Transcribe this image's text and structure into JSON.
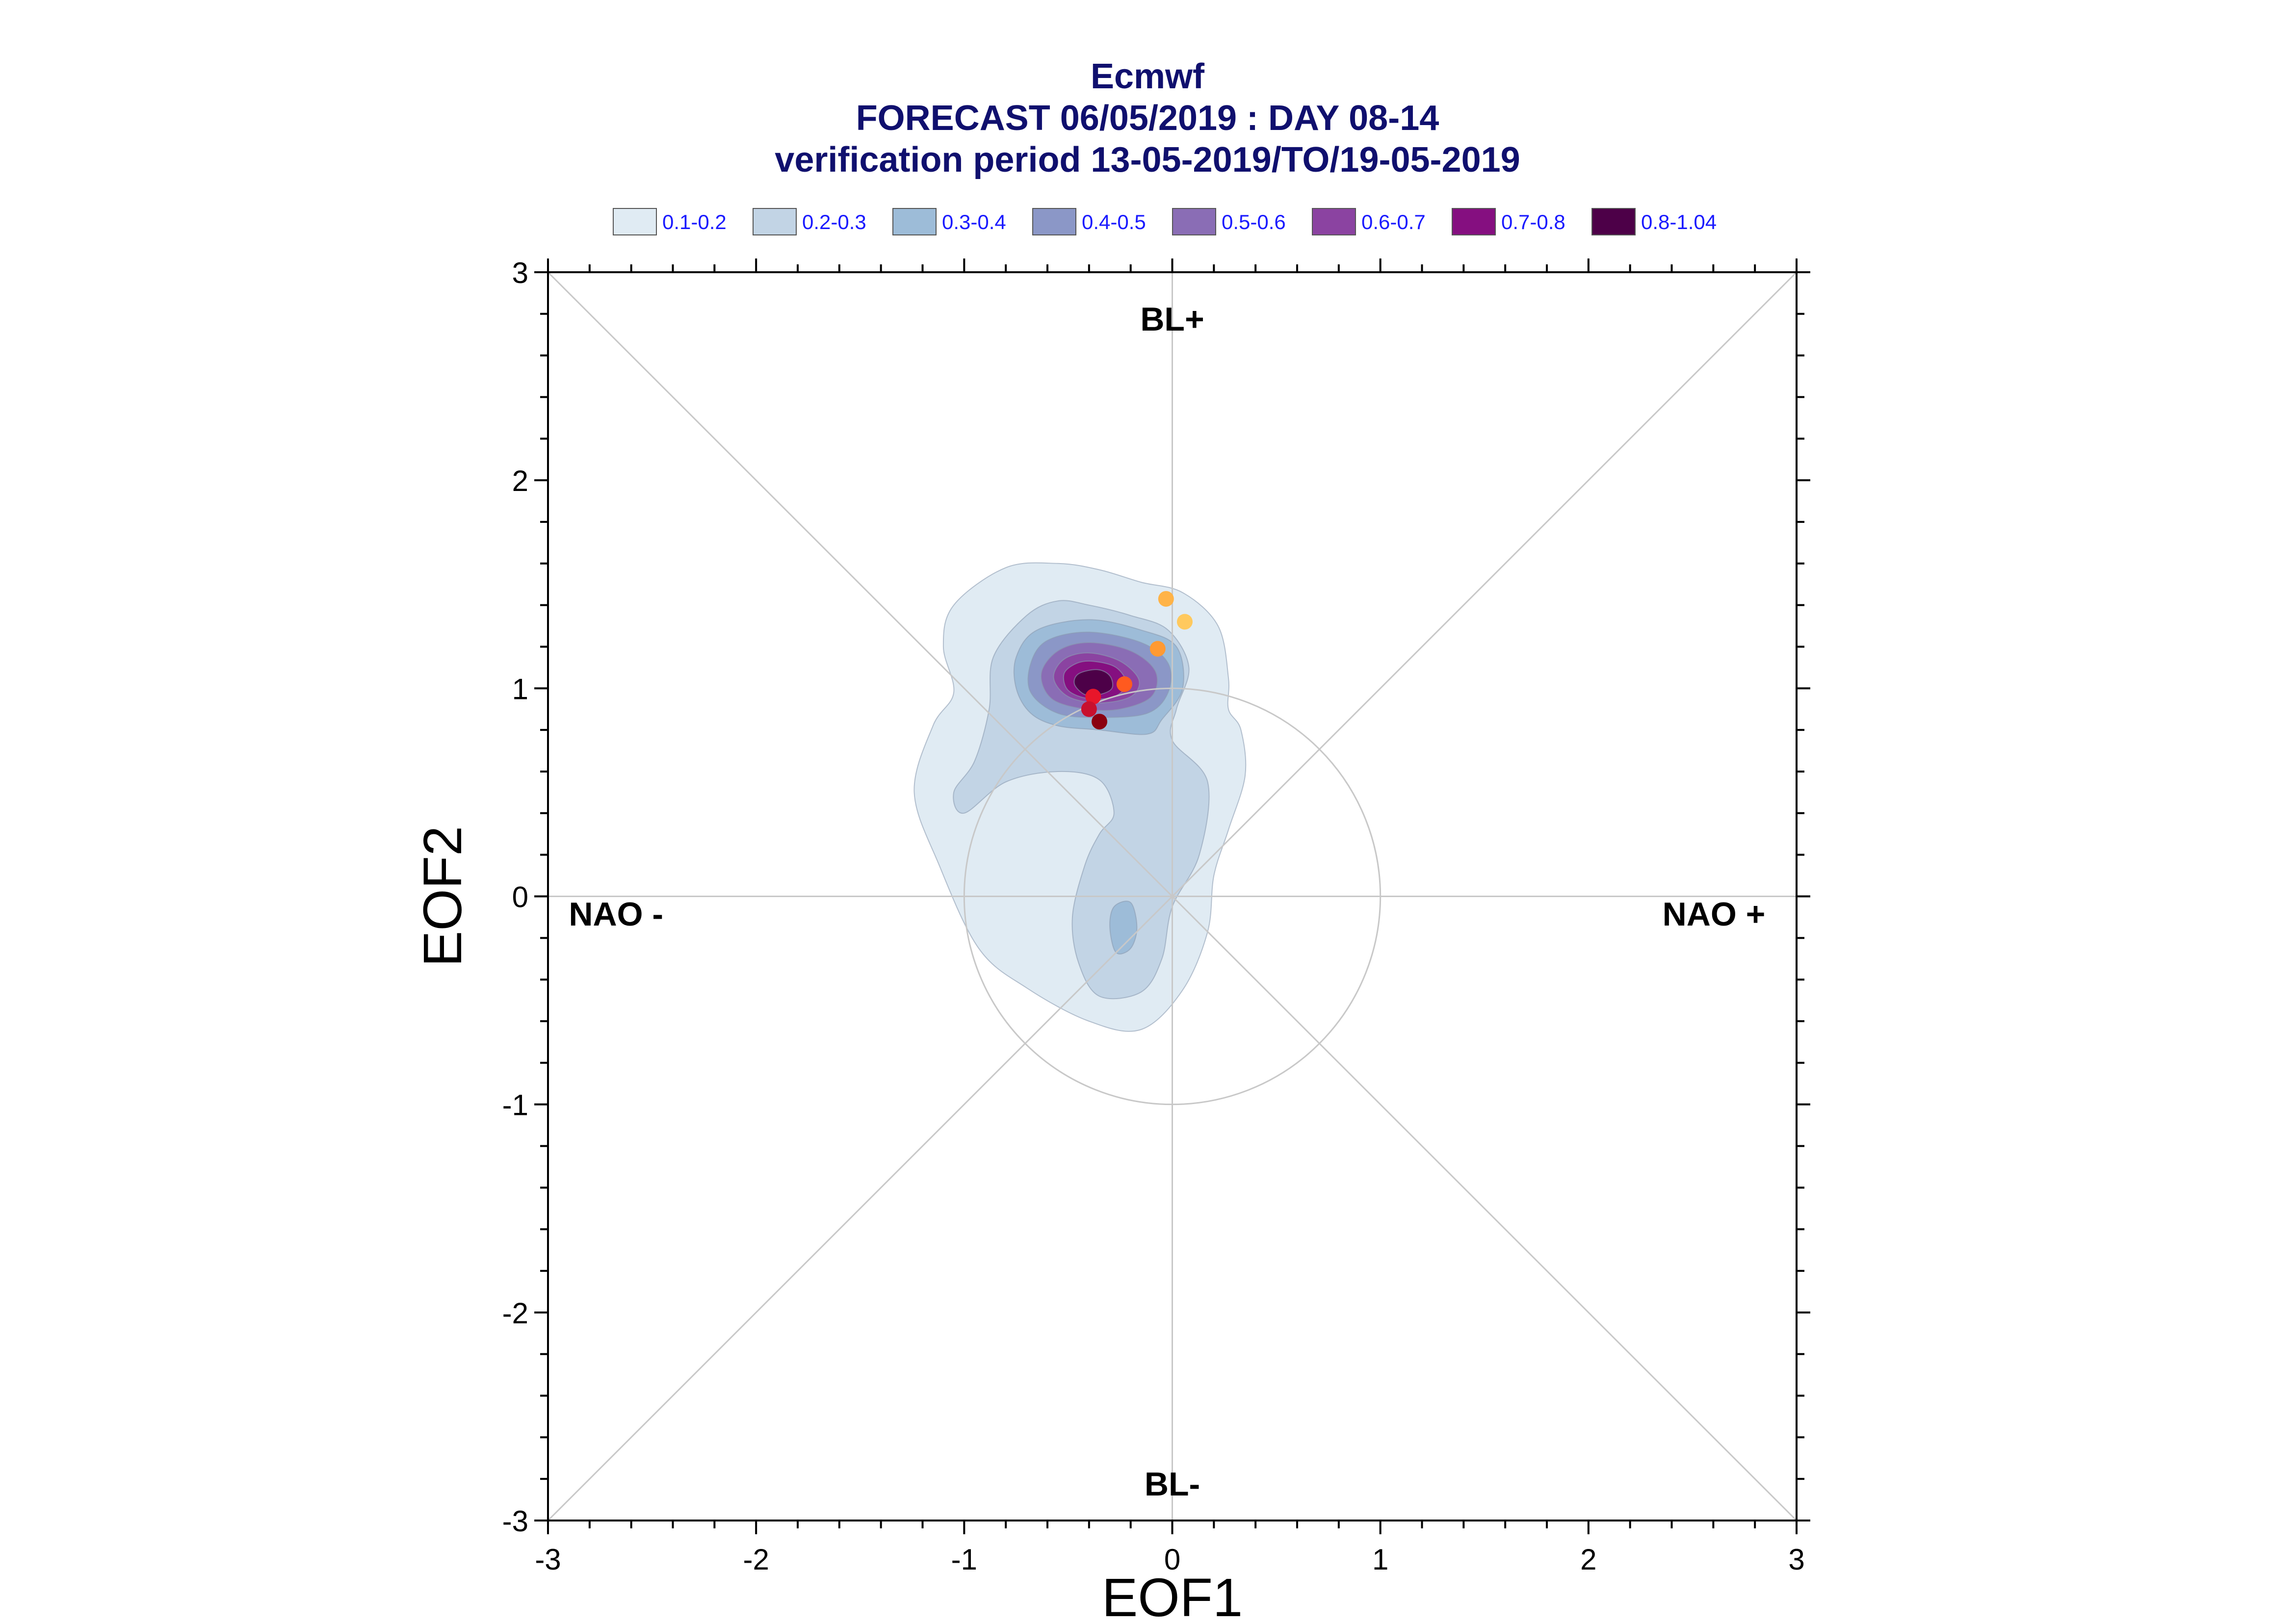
{
  "chart_data": {
    "type": "scatter",
    "title": "Ecmwf",
    "subtitle_lines": [
      "FORECAST 06/05/2019 : DAY 08-14",
      "verification period 13-05-2019/TO/19-05-2019"
    ],
    "xlabel": "EOF1",
    "ylabel": "EOF2",
    "xlim": [
      -3,
      3
    ],
    "ylim": [
      -3,
      3
    ],
    "x_ticks": [
      -3,
      -2,
      -1,
      0,
      1,
      2,
      3
    ],
    "y_ticks": [
      -3,
      -2,
      -1,
      0,
      1,
      2,
      3
    ],
    "grid": "reference lines through origin and diagonals",
    "reference_circle_radius": 1,
    "regime_labels": {
      "top": "BL+",
      "bottom": "BL-",
      "left": "NAO -",
      "right": "NAO +"
    },
    "legend": {
      "placement": "top",
      "entries": [
        {
          "label": "0.1-0.2",
          "color": "#e0ebf3"
        },
        {
          "label": "0.2-0.3",
          "color": "#c2d4e5"
        },
        {
          "label": "0.3-0.4",
          "color": "#9dbcd8"
        },
        {
          "label": "0.4-0.5",
          "color": "#8b97c7"
        },
        {
          "label": "0.5-0.6",
          "color": "#8a6db5"
        },
        {
          "label": "0.6-0.7",
          "color": "#8b43a1"
        },
        {
          "label": "0.7-0.8",
          "color": "#850f80"
        },
        {
          "label": "0.8-1.04",
          "color": "#4d0048"
        }
      ]
    },
    "density_contours": [
      {
        "level": "0.1-0.2",
        "color": "#e0ebf3",
        "points": [
          [
            -0.35,
            1.57
          ],
          [
            -0.15,
            1.51
          ],
          [
            0.05,
            1.46
          ],
          [
            0.22,
            1.3
          ],
          [
            0.27,
            1.05
          ],
          [
            0.27,
            0.9
          ],
          [
            0.33,
            0.8
          ],
          [
            0.35,
            0.58
          ],
          [
            0.27,
            0.32
          ],
          [
            0.2,
            0.1
          ],
          [
            0.17,
            -0.17
          ],
          [
            0.05,
            -0.45
          ],
          [
            -0.15,
            -0.64
          ],
          [
            -0.4,
            -0.6
          ],
          [
            -0.7,
            -0.44
          ],
          [
            -0.93,
            -0.25
          ],
          [
            -1.12,
            0.15
          ],
          [
            -1.24,
            0.5
          ],
          [
            -1.15,
            0.82
          ],
          [
            -1.05,
            0.98
          ],
          [
            -1.1,
            1.2
          ],
          [
            -1.05,
            1.4
          ],
          [
            -0.8,
            1.58
          ],
          [
            -0.55,
            1.6
          ]
        ]
      },
      {
        "level": "0.2-0.3",
        "color": "#c2d4e5",
        "points": [
          [
            -0.4,
            1.4
          ],
          [
            -0.2,
            1.35
          ],
          [
            -0.02,
            1.28
          ],
          [
            0.08,
            1.1
          ],
          [
            0.02,
            0.9
          ],
          [
            0.0,
            0.75
          ],
          [
            0.17,
            0.55
          ],
          [
            0.13,
            0.2
          ],
          [
            0.0,
            -0.05
          ],
          [
            -0.05,
            -0.3
          ],
          [
            -0.15,
            -0.46
          ],
          [
            -0.35,
            -0.48
          ],
          [
            -0.45,
            -0.32
          ],
          [
            -0.48,
            -0.1
          ],
          [
            -0.42,
            0.15
          ],
          [
            -0.35,
            0.3
          ],
          [
            -0.28,
            0.4
          ],
          [
            -0.35,
            0.56
          ],
          [
            -0.55,
            0.6
          ],
          [
            -0.8,
            0.55
          ],
          [
            -1.0,
            0.4
          ],
          [
            -1.05,
            0.5
          ],
          [
            -0.95,
            0.65
          ],
          [
            -0.88,
            0.9
          ],
          [
            -0.86,
            1.15
          ],
          [
            -0.7,
            1.35
          ],
          [
            -0.55,
            1.42
          ]
        ]
      },
      {
        "level": "0.3-0.4",
        "color": "#9dbcd8",
        "points": [
          [
            -0.4,
            1.33
          ],
          [
            -0.15,
            1.28
          ],
          [
            0.02,
            1.2
          ],
          [
            0.05,
            1.0
          ],
          [
            -0.05,
            0.85
          ],
          [
            -0.12,
            0.78
          ],
          [
            -0.35,
            0.8
          ],
          [
            -0.55,
            0.82
          ],
          [
            -0.68,
            0.88
          ],
          [
            -0.75,
            1.0
          ],
          [
            -0.75,
            1.15
          ],
          [
            -0.65,
            1.28
          ]
        ]
      },
      {
        "level": "0.3-0.4b",
        "color": "#9dbcd8",
        "points": [
          [
            -0.2,
            -0.03
          ],
          [
            -0.17,
            -0.15
          ],
          [
            -0.2,
            -0.25
          ],
          [
            -0.27,
            -0.27
          ],
          [
            -0.3,
            -0.15
          ],
          [
            -0.28,
            -0.05
          ]
        ]
      },
      {
        "level": "0.4-0.5",
        "color": "#8b97c7",
        "points": [
          [
            -0.4,
            1.27
          ],
          [
            -0.15,
            1.22
          ],
          [
            -0.02,
            1.12
          ],
          [
            -0.02,
            0.98
          ],
          [
            -0.12,
            0.88
          ],
          [
            -0.35,
            0.86
          ],
          [
            -0.55,
            0.88
          ],
          [
            -0.68,
            0.98
          ],
          [
            -0.68,
            1.12
          ],
          [
            -0.6,
            1.23
          ]
        ]
      },
      {
        "level": "0.5-0.6",
        "color": "#8a6db5",
        "points": [
          [
            -0.4,
            1.22
          ],
          [
            -0.2,
            1.18
          ],
          [
            -0.08,
            1.08
          ],
          [
            -0.1,
            0.96
          ],
          [
            -0.25,
            0.9
          ],
          [
            -0.42,
            0.9
          ],
          [
            -0.58,
            0.95
          ],
          [
            -0.63,
            1.07
          ],
          [
            -0.55,
            1.18
          ]
        ]
      },
      {
        "level": "0.6-0.7",
        "color": "#8b43a1",
        "points": [
          [
            -0.4,
            1.17
          ],
          [
            -0.25,
            1.13
          ],
          [
            -0.16,
            1.04
          ],
          [
            -0.2,
            0.96
          ],
          [
            -0.35,
            0.93
          ],
          [
            -0.5,
            0.96
          ],
          [
            -0.57,
            1.05
          ],
          [
            -0.52,
            1.14
          ]
        ]
      },
      {
        "level": "0.7-0.8",
        "color": "#850f80",
        "points": [
          [
            -0.38,
            1.13
          ],
          [
            -0.27,
            1.1
          ],
          [
            -0.22,
            1.02
          ],
          [
            -0.28,
            0.96
          ],
          [
            -0.4,
            0.95
          ],
          [
            -0.5,
            0.99
          ],
          [
            -0.52,
            1.07
          ],
          [
            -0.46,
            1.12
          ]
        ]
      },
      {
        "level": "0.8-1.04",
        "color": "#4d0048",
        "points": [
          [
            -0.36,
            1.09
          ],
          [
            -0.3,
            1.06
          ],
          [
            -0.29,
            1.0
          ],
          [
            -0.35,
            0.97
          ],
          [
            -0.42,
            0.97
          ],
          [
            -0.47,
            1.02
          ],
          [
            -0.45,
            1.07
          ]
        ]
      }
    ],
    "points": [
      {
        "x": -0.03,
        "y": 1.43,
        "color": "#ffb347"
      },
      {
        "x": 0.06,
        "y": 1.32,
        "color": "#ffc95e"
      },
      {
        "x": -0.07,
        "y": 1.19,
        "color": "#ff9a33"
      },
      {
        "x": -0.23,
        "y": 1.02,
        "color": "#ff5a1f"
      },
      {
        "x": -0.38,
        "y": 0.96,
        "color": "#e8162a"
      },
      {
        "x": -0.4,
        "y": 0.9,
        "color": "#c8102e"
      },
      {
        "x": -0.35,
        "y": 0.84,
        "color": "#8b0010"
      }
    ]
  }
}
